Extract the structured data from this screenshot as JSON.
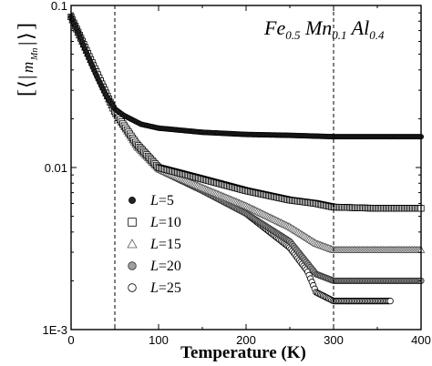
{
  "chart_data": {
    "type": "scatter",
    "title_parts": [
      {
        "t": "Fe",
        "sub": "0.5"
      },
      {
        "t": "Mn",
        "sub": "0.1"
      },
      {
        "t": "Al",
        "sub": "0.4"
      }
    ],
    "xlabel": "Temperature (K)",
    "ylabel_m": "m",
    "ylabel_sub": "Mn",
    "xlim": [
      0,
      400
    ],
    "ylim": [
      0.001,
      0.1
    ],
    "yscale": "log",
    "x_ticks": [
      0,
      100,
      200,
      300,
      400
    ],
    "y_ticks": [
      {
        "value": 0.1,
        "label": "0.1"
      },
      {
        "value": 0.01,
        "label": "0.01"
      },
      {
        "value": 0.001,
        "label": "1E-3"
      }
    ],
    "vlines": [
      50,
      300
    ],
    "legend_position": "lower-left",
    "legend_prefix": "L",
    "series": [
      {
        "name": "5",
        "marker": "filled-circle-small",
        "x": [
          0,
          10,
          20,
          30,
          40,
          50,
          60,
          80,
          100,
          150,
          200,
          250,
          300,
          350,
          400
        ],
        "y": [
          0.085,
          0.065,
          0.048,
          0.036,
          0.028,
          0.023,
          0.021,
          0.0185,
          0.0175,
          0.0165,
          0.016,
          0.0158,
          0.0155,
          0.0155,
          0.0155
        ]
      },
      {
        "name": "10",
        "marker": "open-square",
        "x": [
          0,
          50,
          75,
          100,
          150,
          200,
          250,
          280,
          300,
          350,
          400
        ],
        "y": [
          0.085,
          0.022,
          0.014,
          0.01,
          0.0085,
          0.0072,
          0.0063,
          0.006,
          0.0057,
          0.0056,
          0.0056
        ]
      },
      {
        "name": "15",
        "marker": "open-triangle",
        "x": [
          0,
          50,
          75,
          100,
          150,
          200,
          250,
          280,
          300,
          350,
          400
        ],
        "y": [
          0.085,
          0.022,
          0.0135,
          0.0098,
          0.0075,
          0.0058,
          0.0043,
          0.0034,
          0.0031,
          0.0031,
          0.0031
        ]
      },
      {
        "name": "20",
        "marker": "gray-circle",
        "x": [
          0,
          50,
          75,
          100,
          150,
          200,
          250,
          280,
          300,
          350,
          400
        ],
        "y": [
          0.085,
          0.022,
          0.0135,
          0.0097,
          0.0072,
          0.0052,
          0.0035,
          0.0022,
          0.002,
          0.002,
          0.002
        ]
      },
      {
        "name": "25",
        "marker": "open-circle",
        "x": [
          0,
          50,
          75,
          100,
          150,
          200,
          250,
          270,
          280,
          300,
          350,
          365
        ],
        "y": [
          0.085,
          0.022,
          0.0135,
          0.0097,
          0.0072,
          0.0052,
          0.0032,
          0.0023,
          0.0017,
          0.0015,
          0.0015,
          0.0015
        ]
      }
    ]
  }
}
